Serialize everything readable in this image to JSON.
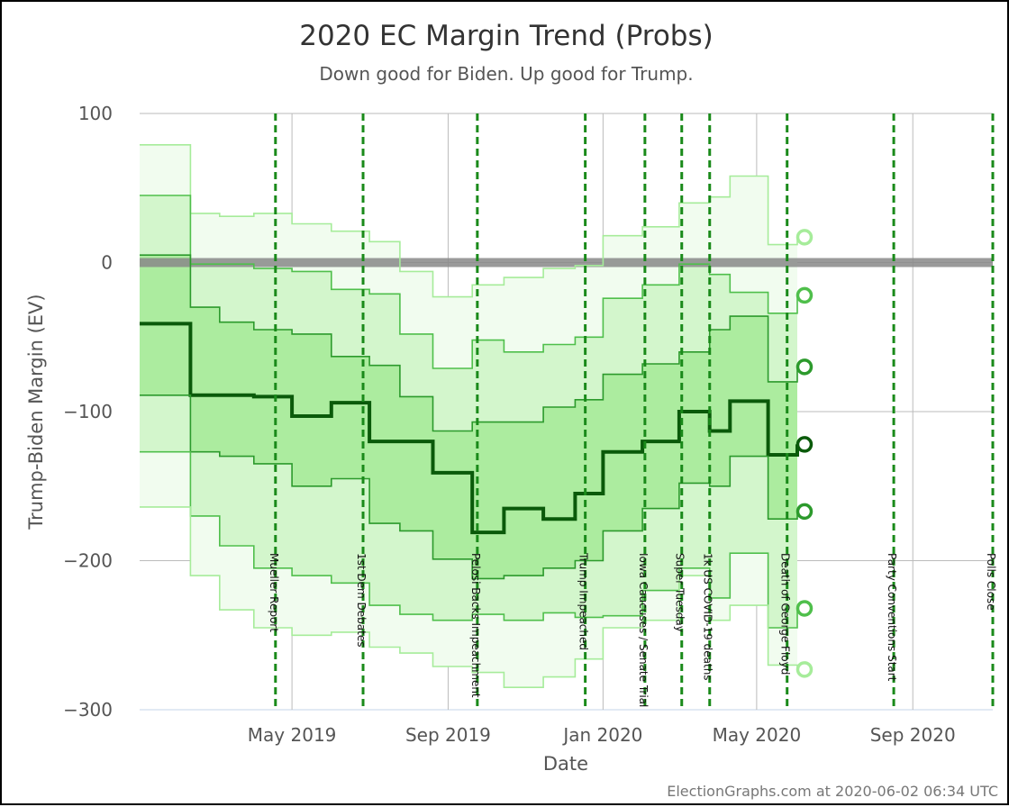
{
  "chart_data": {
    "type": "area",
    "title": "2020 EC Margin Trend (Probs)",
    "subtitle": "Down good for Biden. Up good for Trump.",
    "xlabel": "Date",
    "ylabel": "Trump-Biden Margin (EV)",
    "ylim": [
      -300,
      100
    ],
    "yticks": [
      100,
      0,
      -100,
      -200,
      -300
    ],
    "ytick_labels": [
      "100",
      "0",
      "−100",
      "−200",
      "−300"
    ],
    "xlim": [
      "2019-01-01",
      "2020-11-03"
    ],
    "xticks": [
      {
        "date": "2019-05-01",
        "label": "May 2019"
      },
      {
        "date": "2019-09-01",
        "label": "Sep 2019"
      },
      {
        "date": "2020-01-01",
        "label": "Jan 2020"
      },
      {
        "date": "2020-05-01",
        "label": "May 2020"
      },
      {
        "date": "2020-09-01",
        "label": "Sep 2020"
      }
    ],
    "grid": true,
    "series": [
      {
        "name": "",
        "color": "#a6ec9a",
        "x": [
          "2019-01-01",
          "2019-01-20",
          "2019-02-10",
          "2019-03-05",
          "2019-04-01",
          "2019-05-01",
          "2019-06-01",
          "2019-07-01",
          "2019-07-25",
          "2019-08-20",
          "2019-09-20",
          "2019-10-15",
          "2019-11-15",
          "2019-12-10",
          "2020-01-01",
          "2020-02-01",
          "2020-03-01",
          "2020-03-25",
          "2020-04-10",
          "2020-05-10",
          "2020-06-02"
        ],
        "values": [
          79,
          79,
          33,
          31,
          33,
          26,
          21,
          14,
          -6,
          -23,
          -15,
          -10,
          -4,
          -2,
          18,
          24,
          40,
          44,
          58,
          12,
          17
        ]
      },
      {
        "name": "",
        "color": "#4fbf4b",
        "x": [
          "2019-01-01",
          "2019-01-20",
          "2019-02-10",
          "2019-03-05",
          "2019-04-01",
          "2019-05-01",
          "2019-06-01",
          "2019-07-01",
          "2019-07-25",
          "2019-08-20",
          "2019-09-20",
          "2019-10-15",
          "2019-11-15",
          "2019-12-10",
          "2020-01-01",
          "2020-02-01",
          "2020-03-01",
          "2020-03-25",
          "2020-04-10",
          "2020-05-10",
          "2020-06-02"
        ],
        "values": [
          45,
          45,
          -1,
          -1,
          -4,
          -6,
          -18,
          -21,
          -48,
          -71,
          -52,
          -60,
          -55,
          -50,
          -24,
          -15,
          -1,
          -8,
          -20,
          -34,
          -22
        ]
      },
      {
        "name": "",
        "color": "#2c9a2c",
        "x": [
          "2019-01-01",
          "2019-01-20",
          "2019-02-10",
          "2019-03-05",
          "2019-04-01",
          "2019-05-01",
          "2019-06-01",
          "2019-07-01",
          "2019-07-25",
          "2019-08-20",
          "2019-09-20",
          "2019-10-15",
          "2019-11-15",
          "2019-12-10",
          "2020-01-01",
          "2020-02-01",
          "2020-03-01",
          "2020-03-25",
          "2020-04-10",
          "2020-05-10",
          "2020-06-02"
        ],
        "values": [
          5,
          5,
          -30,
          -40,
          -45,
          -48,
          -63,
          -69,
          -90,
          -113,
          -107,
          -107,
          -97,
          -92,
          -75,
          -68,
          -60,
          -45,
          -36,
          -80,
          -70
        ]
      },
      {
        "name": "",
        "color": "#0a5a0a",
        "x": [
          "2019-01-01",
          "2019-01-20",
          "2019-02-10",
          "2019-03-05",
          "2019-04-01",
          "2019-05-01",
          "2019-06-01",
          "2019-07-01",
          "2019-07-25",
          "2019-08-20",
          "2019-09-20",
          "2019-10-15",
          "2019-11-15",
          "2019-12-10",
          "2020-01-01",
          "2020-02-01",
          "2020-03-01",
          "2020-03-25",
          "2020-04-10",
          "2020-05-10",
          "2020-06-02"
        ],
        "values": [
          -41,
          -41,
          -89,
          -89,
          -90,
          -103,
          -94,
          -120,
          -120,
          -141,
          -181,
          -165,
          -172,
          -155,
          -127,
          -120,
          -100,
          -113,
          -93,
          -129,
          -122
        ]
      },
      {
        "name": "",
        "color": "#2c9a2c",
        "x": [
          "2019-01-01",
          "2019-01-20",
          "2019-02-10",
          "2019-03-05",
          "2019-04-01",
          "2019-05-01",
          "2019-06-01",
          "2019-07-01",
          "2019-07-25",
          "2019-08-20",
          "2019-09-20",
          "2019-10-15",
          "2019-11-15",
          "2019-12-10",
          "2020-01-01",
          "2020-02-01",
          "2020-03-01",
          "2020-03-25",
          "2020-04-10",
          "2020-05-10",
          "2020-06-02"
        ],
        "values": [
          -89,
          -89,
          -127,
          -130,
          -135,
          -150,
          -145,
          -175,
          -180,
          -199,
          -212,
          -210,
          -205,
          -200,
          -180,
          -165,
          -148,
          -150,
          -130,
          -172,
          -167
        ]
      },
      {
        "name": "",
        "color": "#4fbf4b",
        "x": [
          "2019-01-01",
          "2019-01-20",
          "2019-02-10",
          "2019-03-05",
          "2019-04-01",
          "2019-05-01",
          "2019-06-01",
          "2019-07-01",
          "2019-07-25",
          "2019-08-20",
          "2019-09-20",
          "2019-10-15",
          "2019-11-15",
          "2019-12-10",
          "2020-01-01",
          "2020-02-01",
          "2020-03-01",
          "2020-03-25",
          "2020-04-10",
          "2020-05-10",
          "2020-06-02"
        ],
        "values": [
          -127,
          -127,
          -170,
          -190,
          -205,
          -210,
          -215,
          -230,
          -236,
          -240,
          -236,
          -240,
          -235,
          -238,
          -237,
          -220,
          -205,
          -225,
          -195,
          -245,
          -232
        ]
      },
      {
        "name": "",
        "color": "#a6ec9a",
        "x": [
          "2019-01-01",
          "2019-01-20",
          "2019-02-10",
          "2019-03-05",
          "2019-04-01",
          "2019-05-01",
          "2019-06-01",
          "2019-07-01",
          "2019-07-25",
          "2019-08-20",
          "2019-09-20",
          "2019-10-15",
          "2019-11-15",
          "2019-12-10",
          "2020-01-01",
          "2020-02-01",
          "2020-03-01",
          "2020-03-25",
          "2020-04-10",
          "2020-05-10",
          "2020-06-02"
        ],
        "values": [
          -164,
          -164,
          -210,
          -233,
          -245,
          -250,
          -248,
          -258,
          -262,
          -271,
          -275,
          -285,
          -278,
          -266,
          -245,
          -240,
          -210,
          -240,
          -230,
          -270,
          -273
        ]
      }
    ],
    "end_markers": [
      17,
      -22,
      -70,
      -122,
      -167,
      -232,
      -273
    ],
    "zero_line": 0,
    "events": [
      {
        "date": "2019-04-18",
        "label": "Mueller Report"
      },
      {
        "date": "2019-06-26",
        "label": "1st Dem Debates"
      },
      {
        "date": "2019-09-24",
        "label": "Pelosi Backs Impeachment"
      },
      {
        "date": "2019-12-18",
        "label": "Trump Impeached"
      },
      {
        "date": "2020-02-03",
        "label": "Iowa Caucuses / Senate Trial"
      },
      {
        "date": "2020-03-03",
        "label": "Super Tuesday"
      },
      {
        "date": "2020-03-25",
        "label": "1k US COVID-19 deaths"
      },
      {
        "date": "2020-05-25",
        "label": "Death of George Floyd"
      },
      {
        "date": "2020-08-17",
        "label": "Party Conventions Start"
      },
      {
        "date": "2020-11-03",
        "label": "Polls Close"
      }
    ],
    "credit": "ElectionGraphs.com at 2020-06-02 06:34 UTC",
    "colors": {
      "band_outer": "#f1fcef",
      "band_mid": "#d3f6cc",
      "band_inner": "#acec9f",
      "event_line": "#1a8a1a",
      "zero_band": "#888888"
    }
  }
}
